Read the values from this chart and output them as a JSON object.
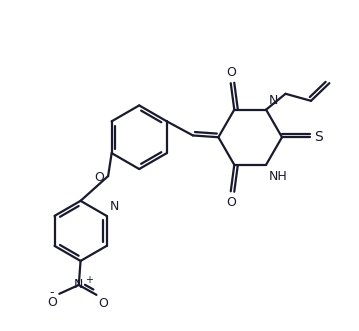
{
  "background_color": "#ffffff",
  "line_color": "#1a1a2e",
  "line_width": 1.6,
  "figsize": [
    3.59,
    3.31
  ],
  "dpi": 100,
  "xlim": [
    0,
    10
  ],
  "ylim": [
    0,
    9.2
  ]
}
